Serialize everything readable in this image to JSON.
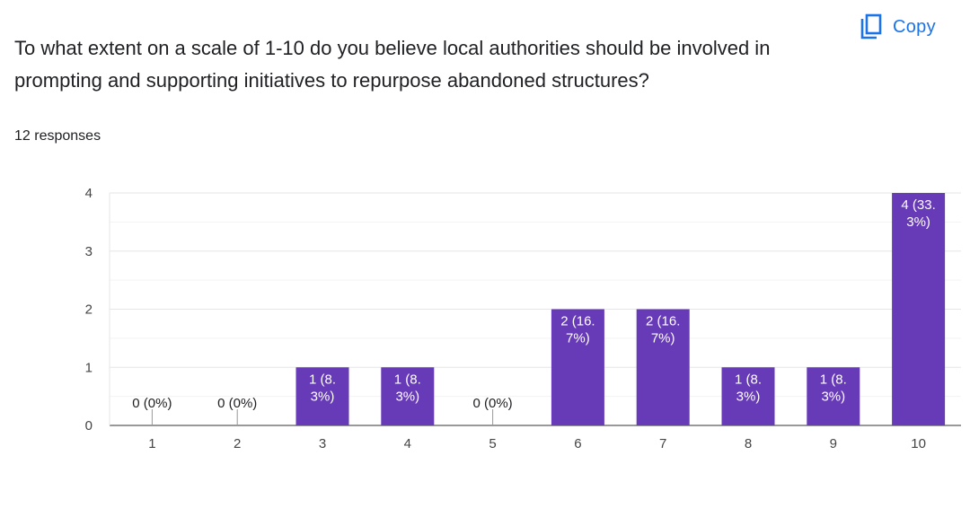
{
  "question": {
    "title": "To what extent on a scale of 1-10 do you believe local authorities should be involved in prompting and supporting initiatives to repurpose abandoned structures?",
    "responses": "12 responses"
  },
  "toolbar": {
    "copy_label": "Copy",
    "copy_icon": "copy-icon"
  },
  "chart_data": {
    "type": "bar",
    "categories": [
      "1",
      "2",
      "3",
      "4",
      "5",
      "6",
      "7",
      "8",
      "9",
      "10"
    ],
    "values": [
      0,
      0,
      1,
      1,
      0,
      2,
      2,
      1,
      1,
      4
    ],
    "data_labels": [
      [
        "0 (0%)"
      ],
      [
        "0 (0%)"
      ],
      [
        "1 (8.",
        "3%)"
      ],
      [
        "1 (8.",
        "3%)"
      ],
      [
        "0 (0%)"
      ],
      [
        "2 (16.",
        "7%)"
      ],
      [
        "2 (16.",
        "7%)"
      ],
      [
        "1 (8.",
        "3%)"
      ],
      [
        "1 (8.",
        "3%)"
      ],
      [
        "4 (33.",
        "3%)"
      ]
    ],
    "y_ticks": [
      0,
      1,
      2,
      3,
      4
    ],
    "ylim": [
      0,
      4
    ],
    "grid": true,
    "bar_color": "#673ab7"
  }
}
